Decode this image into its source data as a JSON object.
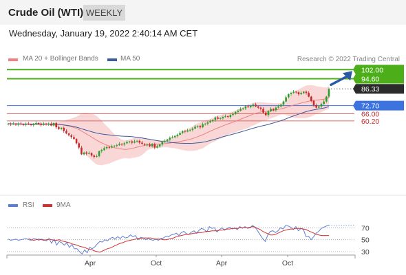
{
  "header": {
    "title": "Crude Oil (WTI)",
    "timeframe": "WEEKLY"
  },
  "timestamp": "Wednesday, January 19, 2022 2:40:14 AM CET",
  "legend": {
    "ma20": "MA 20 + Bollinger Bands",
    "ma50": "MA 50",
    "credit": "Research © 2022 Trading Central"
  },
  "rsi_legend": {
    "rsi": "RSI",
    "ma9": "9MA"
  },
  "colors": {
    "ma20": "#f08080",
    "ma50": "#3a5a9c",
    "up": "#2a9d2a",
    "down": "#c62828",
    "resistance": "#4caf1a",
    "support": "#e06666",
    "pivot": "#3b73e0",
    "rsi": "#5c7fd6",
    "rsi_ma": "#d32f2f",
    "band": "#f9d0d0",
    "arrow": "#2d5aa6"
  },
  "chart_data": [
    {
      "type": "candlestick",
      "title": "Crude Oil (WTI)",
      "timeframe": "WEEKLY",
      "x_tick_labels": [
        "Apr",
        "Oct",
        "Apr",
        "Oct"
      ],
      "levels": [
        {
          "label": "102.00",
          "value": 102.0,
          "kind": "resistance"
        },
        {
          "label": "94.60",
          "value": 94.6,
          "kind": "resistance"
        },
        {
          "label": "86.33",
          "value": 86.33,
          "kind": "last"
        },
        {
          "label": "72.70",
          "value": 72.7,
          "kind": "pivot"
        },
        {
          "label": "66.00",
          "value": 66.0,
          "kind": "support"
        },
        {
          "label": "60.20",
          "value": 60.2,
          "kind": "support"
        }
      ],
      "series": [
        {
          "name": "MA 20 + Bollinger Bands"
        },
        {
          "name": "MA 50"
        }
      ],
      "close": [
        58,
        57.5,
        58,
        57.2,
        58,
        57.5,
        57,
        58,
        57.4,
        56.9,
        57.5,
        58.5,
        58,
        57,
        58,
        57.5,
        58,
        56.5,
        58.5,
        55,
        53.6,
        54.6,
        52,
        50,
        48.5,
        47,
        45.5,
        42,
        38.5,
        33,
        34.5,
        33.5,
        34,
        32,
        31,
        31.5,
        35.5,
        36.5,
        38,
        39,
        38.5,
        39.5,
        40,
        40.5,
        41.5,
        41,
        42,
        43,
        43.5,
        42.5,
        43.5,
        44,
        42.5,
        41.5,
        40.8,
        41,
        39.5,
        41.5,
        38.5,
        39.5,
        41,
        43,
        43.8,
        45,
        46.5,
        47,
        48,
        49,
        50.5,
        52,
        51.5,
        52.5,
        53,
        54,
        55.5,
        56,
        55,
        57.5,
        58,
        59,
        60,
        61,
        63,
        62,
        62.5,
        63.5,
        64,
        63.5,
        65,
        66,
        67.5,
        68.5,
        70,
        70.5,
        72,
        71.5,
        72.5,
        73.5,
        72,
        71,
        70,
        67,
        65,
        68,
        70,
        69,
        71,
        72,
        73.5,
        76,
        79.5,
        82,
        83,
        84,
        83.5,
        82,
        83,
        84,
        83,
        80,
        76.5,
        73,
        71,
        72,
        74,
        76,
        80,
        86.3
      ],
      "rsi": {
        "ticks": [
          70,
          50,
          30
        ],
        "values": [
          51,
          49,
          50,
          51,
          49,
          50,
          51,
          52,
          50,
          49,
          52,
          51,
          49,
          51,
          50,
          48,
          52,
          44,
          51,
          41,
          47,
          45,
          41,
          45,
          37,
          42,
          35,
          35,
          30,
          26,
          33,
          28,
          37,
          35,
          38,
          43,
          47,
          46,
          50,
          48,
          52,
          54,
          51,
          55,
          52,
          56,
          53,
          54,
          58,
          55,
          57,
          50,
          54,
          53,
          50,
          52,
          50,
          49,
          51,
          49,
          52,
          53,
          56,
          55,
          58,
          59,
          61,
          57,
          62,
          64,
          60,
          59,
          63,
          65,
          61,
          66,
          69,
          67,
          63,
          72,
          69,
          70,
          63,
          67,
          70,
          66,
          69,
          71,
          68,
          70,
          67,
          72,
          69,
          72,
          69,
          70,
          74,
          71,
          65,
          58,
          52,
          47,
          58,
          64,
          65,
          62,
          65,
          70,
          68,
          74,
          73,
          71,
          67,
          72,
          65,
          69,
          67,
          55,
          56,
          50,
          55,
          61,
          64,
          69,
          71,
          73,
          74
        ],
        "ma9": [
          52,
          50,
          49,
          50,
          51,
          50,
          49,
          50,
          51,
          50,
          49,
          49,
          50,
          48,
          47,
          46,
          45,
          43,
          42,
          41,
          39,
          38,
          37,
          35,
          34,
          33,
          31,
          30,
          29,
          31,
          33,
          35,
          36,
          38,
          40,
          42,
          44,
          45,
          47,
          48,
          49,
          50,
          51,
          52,
          52,
          53,
          53,
          53,
          53,
          52,
          51,
          51,
          51,
          50,
          50,
          51,
          52,
          53,
          55,
          56,
          57,
          58,
          59,
          59,
          60,
          61,
          61,
          62,
          62,
          63,
          64,
          64,
          65,
          65,
          65,
          66,
          66,
          67,
          68,
          68,
          69,
          69,
          69,
          70,
          70,
          70,
          70,
          71,
          72,
          71,
          69,
          67,
          64,
          62,
          60,
          58,
          58,
          59,
          61,
          63,
          65,
          66,
          67,
          68,
          68,
          69,
          69,
          69,
          68,
          67,
          65,
          63,
          61,
          59,
          58,
          57,
          57,
          57,
          57
        ]
      }
    }
  ]
}
